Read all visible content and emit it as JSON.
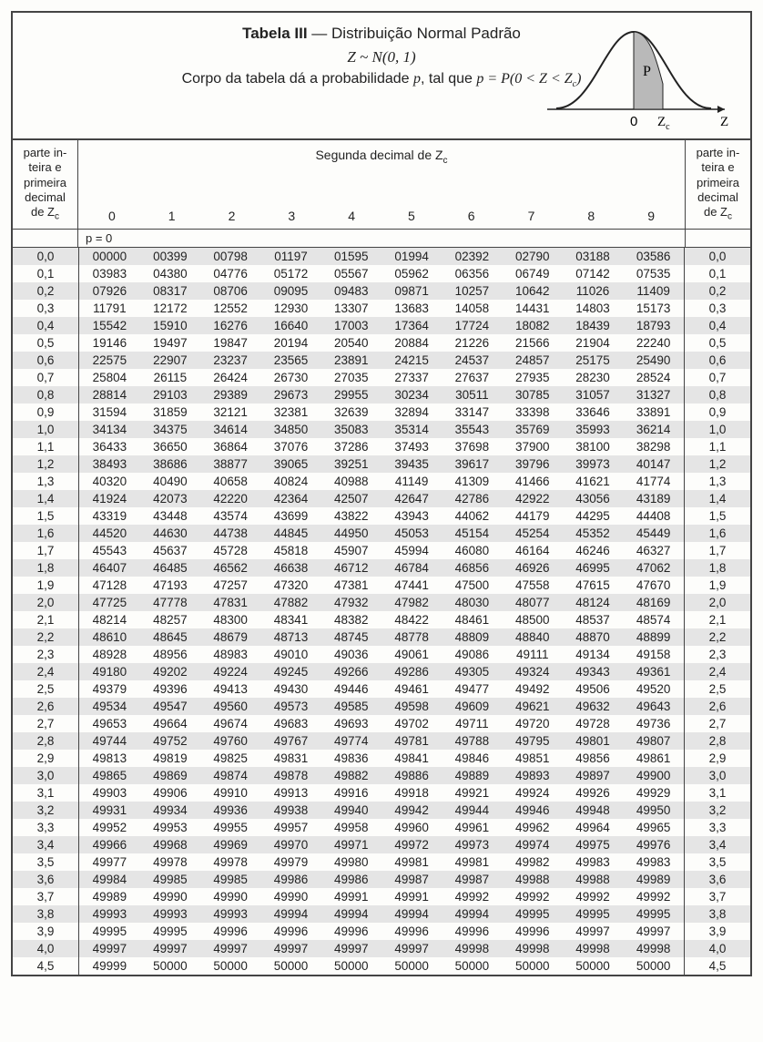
{
  "header": {
    "title_bold": "Tabela III",
    "title_sep": " — ",
    "title_rest": "Distribuição Normal Padrão",
    "line2_html": "Z ~ N(0, 1)",
    "line3_pre": "Corpo da tabela dá a probabilidade ",
    "line3_p": "p",
    "line3_mid": ", tal que ",
    "line3_eq": "p = P(0 < Z < Z",
    "line3_eq_sub": "c",
    "line3_eq_end": ")"
  },
  "curve": {
    "fill": "#b9b9b9",
    "stroke": "#222",
    "label_p": "P",
    "label_0": "0",
    "label_zc": "Z",
    "label_zc_sub": "c",
    "label_Z": "Z"
  },
  "subheader": {
    "left_lines": [
      "parte in-",
      "teira e",
      "primeira",
      "decimal",
      "de Z"
    ],
    "left_sub": "c",
    "mid_title": "Segunda decimal de Z",
    "mid_title_sub": "c",
    "cols": [
      "0",
      "1",
      "2",
      "3",
      "4",
      "5",
      "6",
      "7",
      "8",
      "9"
    ],
    "right_lines": [
      "parte in-",
      "teira e",
      "primeira",
      "decimal",
      "de Z"
    ],
    "right_sub": "c",
    "p_note": "p = 0"
  },
  "table": {
    "row_stripe_even": "#e5e5e5",
    "row_stripe_odd": "#fdfdfb",
    "rows": [
      {
        "z": "0,0",
        "v": [
          "00000",
          "00399",
          "00798",
          "01197",
          "01595",
          "01994",
          "02392",
          "02790",
          "03188",
          "03586"
        ]
      },
      {
        "z": "0,1",
        "v": [
          "03983",
          "04380",
          "04776",
          "05172",
          "05567",
          "05962",
          "06356",
          "06749",
          "07142",
          "07535"
        ]
      },
      {
        "z": "0,2",
        "v": [
          "07926",
          "08317",
          "08706",
          "09095",
          "09483",
          "09871",
          "10257",
          "10642",
          "11026",
          "11409"
        ]
      },
      {
        "z": "0,3",
        "v": [
          "11791",
          "12172",
          "12552",
          "12930",
          "13307",
          "13683",
          "14058",
          "14431",
          "14803",
          "15173"
        ]
      },
      {
        "z": "0,4",
        "v": [
          "15542",
          "15910",
          "16276",
          "16640",
          "17003",
          "17364",
          "17724",
          "18082",
          "18439",
          "18793"
        ]
      },
      {
        "z": "0,5",
        "v": [
          "19146",
          "19497",
          "19847",
          "20194",
          "20540",
          "20884",
          "21226",
          "21566",
          "21904",
          "22240"
        ]
      },
      {
        "z": "0,6",
        "v": [
          "22575",
          "22907",
          "23237",
          "23565",
          "23891",
          "24215",
          "24537",
          "24857",
          "25175",
          "25490"
        ]
      },
      {
        "z": "0,7",
        "v": [
          "25804",
          "26115",
          "26424",
          "26730",
          "27035",
          "27337",
          "27637",
          "27935",
          "28230",
          "28524"
        ]
      },
      {
        "z": "0,8",
        "v": [
          "28814",
          "29103",
          "29389",
          "29673",
          "29955",
          "30234",
          "30511",
          "30785",
          "31057",
          "31327"
        ]
      },
      {
        "z": "0,9",
        "v": [
          "31594",
          "31859",
          "32121",
          "32381",
          "32639",
          "32894",
          "33147",
          "33398",
          "33646",
          "33891"
        ]
      },
      {
        "z": "1,0",
        "v": [
          "34134",
          "34375",
          "34614",
          "34850",
          "35083",
          "35314",
          "35543",
          "35769",
          "35993",
          "36214"
        ]
      },
      {
        "z": "1,1",
        "v": [
          "36433",
          "36650",
          "36864",
          "37076",
          "37286",
          "37493",
          "37698",
          "37900",
          "38100",
          "38298"
        ]
      },
      {
        "z": "1,2",
        "v": [
          "38493",
          "38686",
          "38877",
          "39065",
          "39251",
          "39435",
          "39617",
          "39796",
          "39973",
          "40147"
        ]
      },
      {
        "z": "1,3",
        "v": [
          "40320",
          "40490",
          "40658",
          "40824",
          "40988",
          "41149",
          "41309",
          "41466",
          "41621",
          "41774"
        ]
      },
      {
        "z": "1,4",
        "v": [
          "41924",
          "42073",
          "42220",
          "42364",
          "42507",
          "42647",
          "42786",
          "42922",
          "43056",
          "43189"
        ]
      },
      {
        "z": "1,5",
        "v": [
          "43319",
          "43448",
          "43574",
          "43699",
          "43822",
          "43943",
          "44062",
          "44179",
          "44295",
          "44408"
        ]
      },
      {
        "z": "1,6",
        "v": [
          "44520",
          "44630",
          "44738",
          "44845",
          "44950",
          "45053",
          "45154",
          "45254",
          "45352",
          "45449"
        ]
      },
      {
        "z": "1,7",
        "v": [
          "45543",
          "45637",
          "45728",
          "45818",
          "45907",
          "45994",
          "46080",
          "46164",
          "46246",
          "46327"
        ]
      },
      {
        "z": "1,8",
        "v": [
          "46407",
          "46485",
          "46562",
          "46638",
          "46712",
          "46784",
          "46856",
          "46926",
          "46995",
          "47062"
        ]
      },
      {
        "z": "1,9",
        "v": [
          "47128",
          "47193",
          "47257",
          "47320",
          "47381",
          "47441",
          "47500",
          "47558",
          "47615",
          "47670"
        ]
      },
      {
        "z": "2,0",
        "v": [
          "47725",
          "47778",
          "47831",
          "47882",
          "47932",
          "47982",
          "48030",
          "48077",
          "48124",
          "48169"
        ]
      },
      {
        "z": "2,1",
        "v": [
          "48214",
          "48257",
          "48300",
          "48341",
          "48382",
          "48422",
          "48461",
          "48500",
          "48537",
          "48574"
        ]
      },
      {
        "z": "2,2",
        "v": [
          "48610",
          "48645",
          "48679",
          "48713",
          "48745",
          "48778",
          "48809",
          "48840",
          "48870",
          "48899"
        ]
      },
      {
        "z": "2,3",
        "v": [
          "48928",
          "48956",
          "48983",
          "49010",
          "49036",
          "49061",
          "49086",
          "49111",
          "49134",
          "49158"
        ]
      },
      {
        "z": "2,4",
        "v": [
          "49180",
          "49202",
          "49224",
          "49245",
          "49266",
          "49286",
          "49305",
          "49324",
          "49343",
          "49361"
        ]
      },
      {
        "z": "2,5",
        "v": [
          "49379",
          "49396",
          "49413",
          "49430",
          "49446",
          "49461",
          "49477",
          "49492",
          "49506",
          "49520"
        ]
      },
      {
        "z": "2,6",
        "v": [
          "49534",
          "49547",
          "49560",
          "49573",
          "49585",
          "49598",
          "49609",
          "49621",
          "49632",
          "49643"
        ]
      },
      {
        "z": "2,7",
        "v": [
          "49653",
          "49664",
          "49674",
          "49683",
          "49693",
          "49702",
          "49711",
          "49720",
          "49728",
          "49736"
        ]
      },
      {
        "z": "2,8",
        "v": [
          "49744",
          "49752",
          "49760",
          "49767",
          "49774",
          "49781",
          "49788",
          "49795",
          "49801",
          "49807"
        ]
      },
      {
        "z": "2,9",
        "v": [
          "49813",
          "49819",
          "49825",
          "49831",
          "49836",
          "49841",
          "49846",
          "49851",
          "49856",
          "49861"
        ]
      },
      {
        "z": "3,0",
        "v": [
          "49865",
          "49869",
          "49874",
          "49878",
          "49882",
          "49886",
          "49889",
          "49893",
          "49897",
          "49900"
        ]
      },
      {
        "z": "3,1",
        "v": [
          "49903",
          "49906",
          "49910",
          "49913",
          "49916",
          "49918",
          "49921",
          "49924",
          "49926",
          "49929"
        ]
      },
      {
        "z": "3,2",
        "v": [
          "49931",
          "49934",
          "49936",
          "49938",
          "49940",
          "49942",
          "49944",
          "49946",
          "49948",
          "49950"
        ]
      },
      {
        "z": "3,3",
        "v": [
          "49952",
          "49953",
          "49955",
          "49957",
          "49958",
          "49960",
          "49961",
          "49962",
          "49964",
          "49965"
        ]
      },
      {
        "z": "3,4",
        "v": [
          "49966",
          "49968",
          "49969",
          "49970",
          "49971",
          "49972",
          "49973",
          "49974",
          "49975",
          "49976"
        ]
      },
      {
        "z": "3,5",
        "v": [
          "49977",
          "49978",
          "49978",
          "49979",
          "49980",
          "49981",
          "49981",
          "49982",
          "49983",
          "49983"
        ]
      },
      {
        "z": "3,6",
        "v": [
          "49984",
          "49985",
          "49985",
          "49986",
          "49986",
          "49987",
          "49987",
          "49988",
          "49988",
          "49989"
        ]
      },
      {
        "z": "3,7",
        "v": [
          "49989",
          "49990",
          "49990",
          "49990",
          "49991",
          "49991",
          "49992",
          "49992",
          "49992",
          "49992"
        ]
      },
      {
        "z": "3,8",
        "v": [
          "49993",
          "49993",
          "49993",
          "49994",
          "49994",
          "49994",
          "49994",
          "49995",
          "49995",
          "49995"
        ]
      },
      {
        "z": "3,9",
        "v": [
          "49995",
          "49995",
          "49996",
          "49996",
          "49996",
          "49996",
          "49996",
          "49996",
          "49997",
          "49997"
        ]
      },
      {
        "z": "4,0",
        "v": [
          "49997",
          "49997",
          "49997",
          "49997",
          "49997",
          "49997",
          "49998",
          "49998",
          "49998",
          "49998"
        ]
      },
      {
        "z": "4,5",
        "v": [
          "49999",
          "50000",
          "50000",
          "50000",
          "50000",
          "50000",
          "50000",
          "50000",
          "50000",
          "50000"
        ]
      }
    ]
  }
}
